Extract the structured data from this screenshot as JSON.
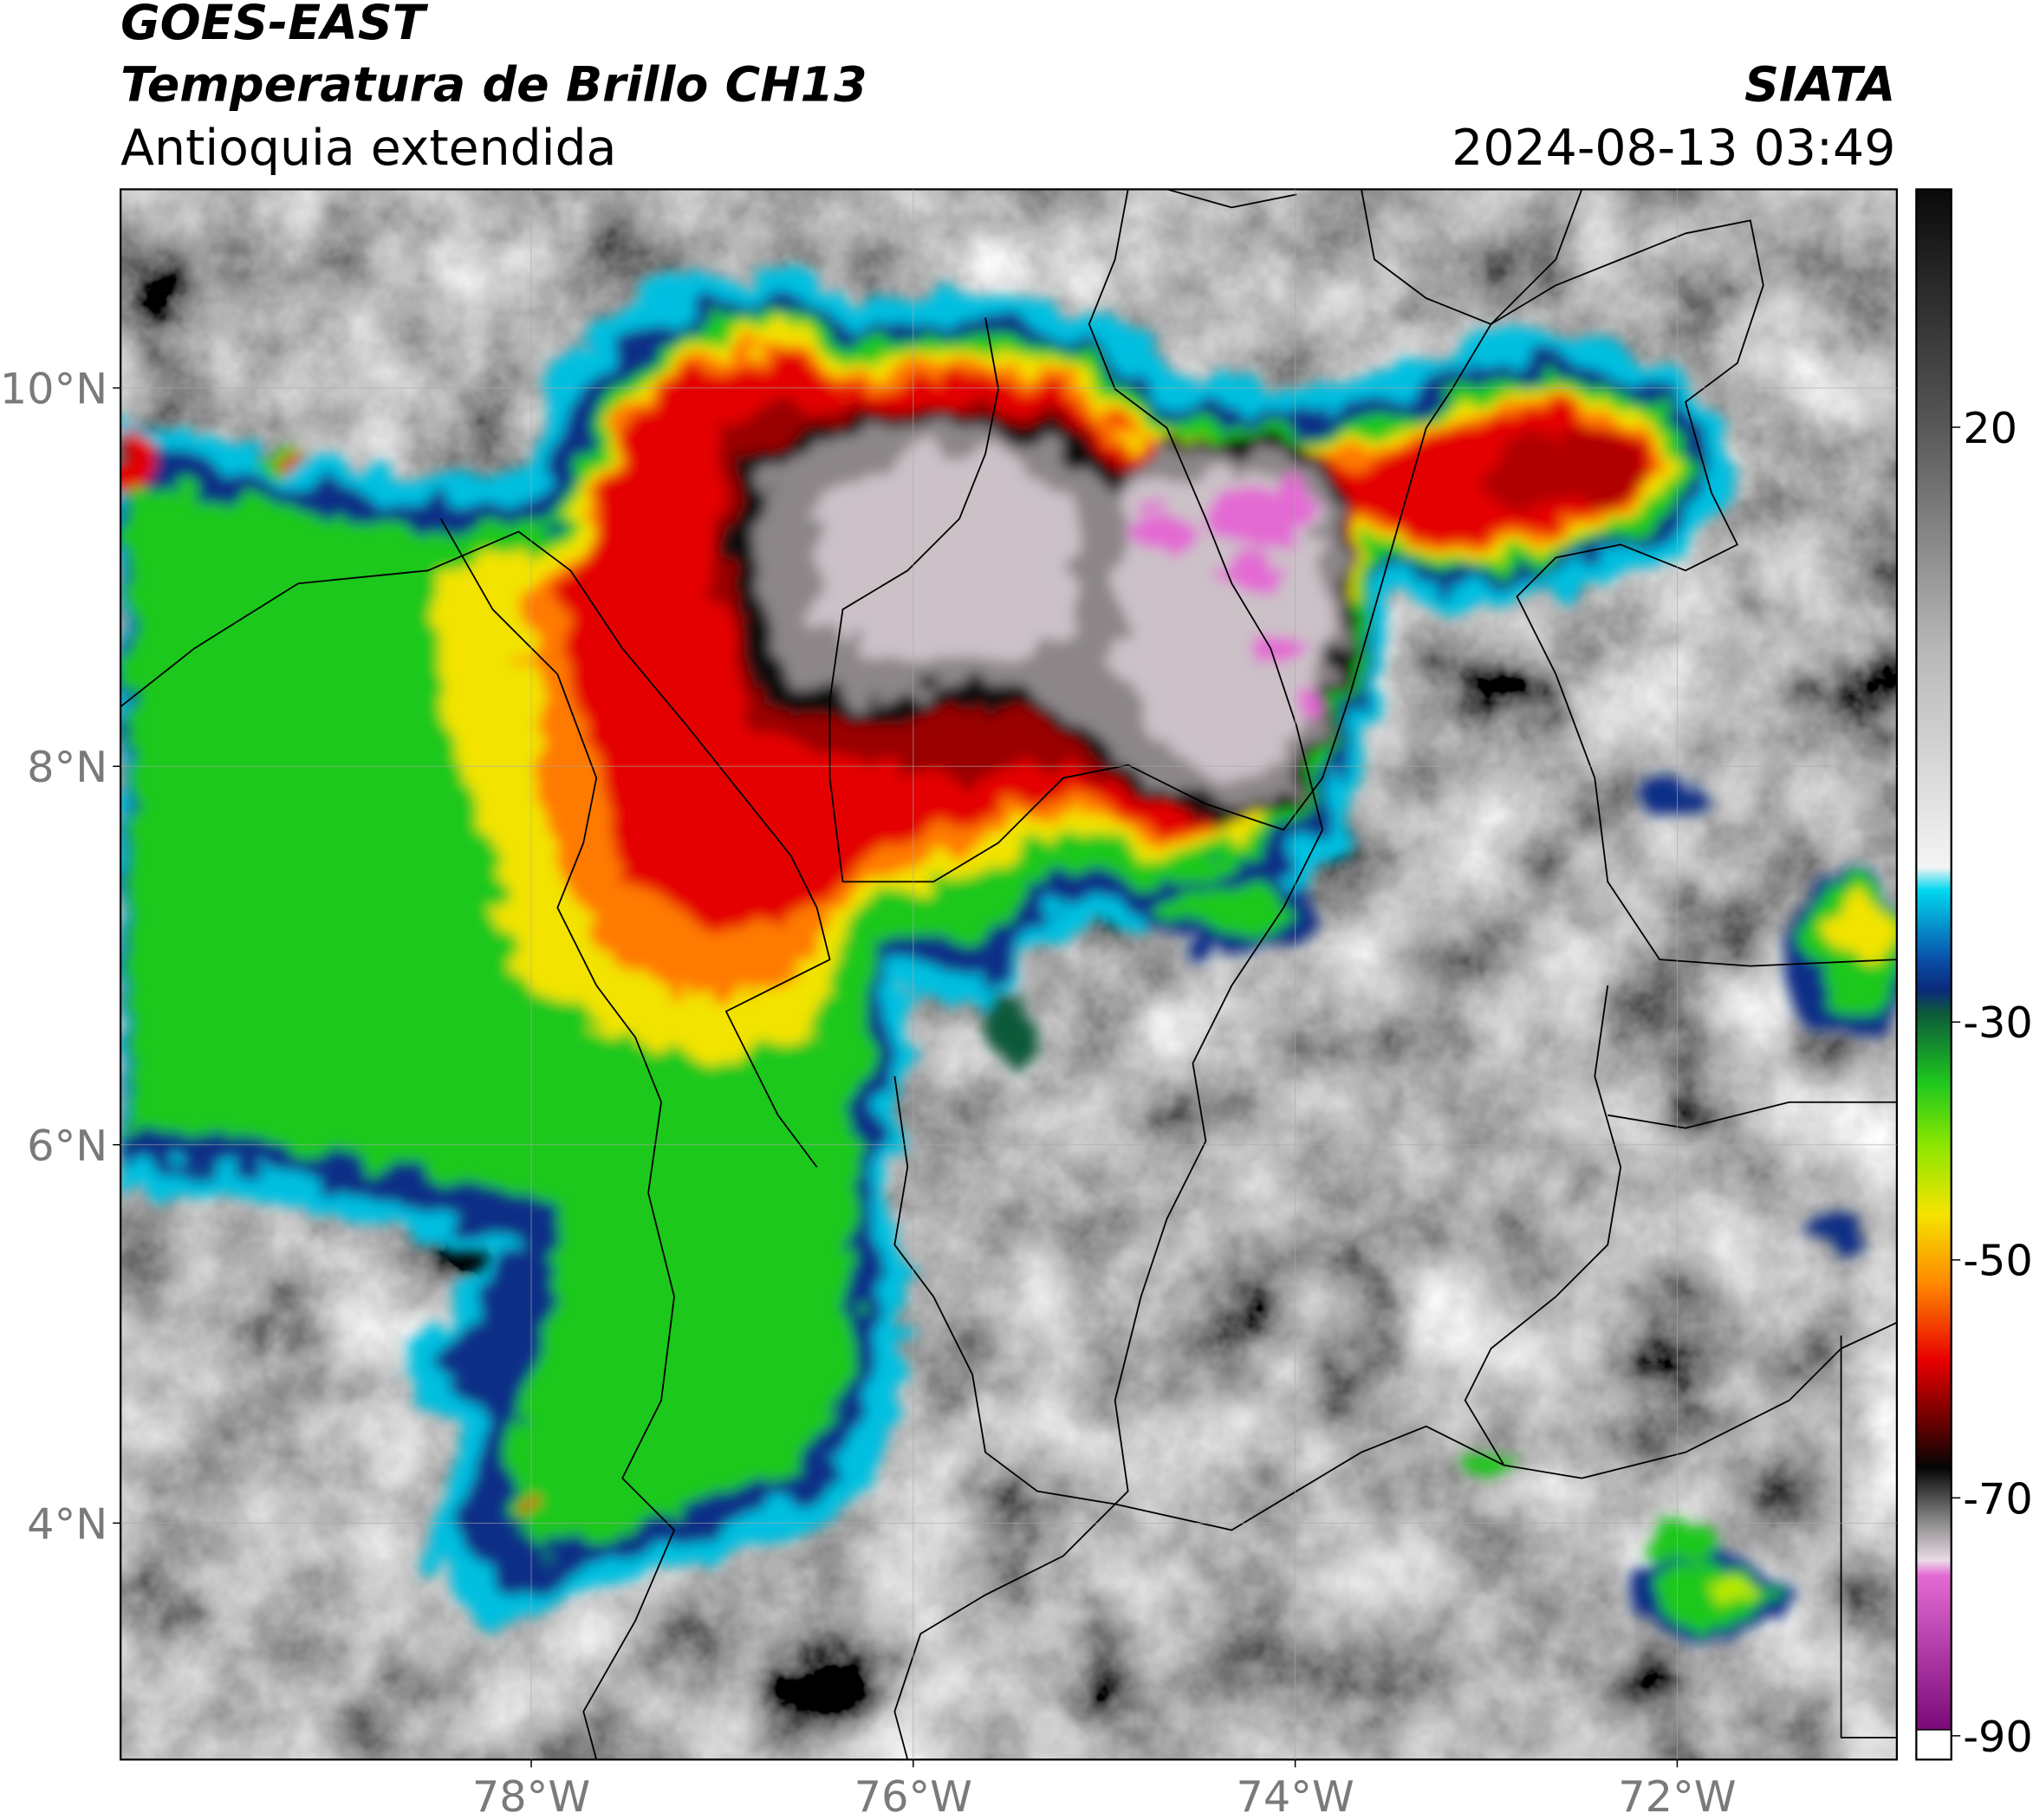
{
  "header": {
    "title": "GOES-EAST",
    "subtitle": "Temperatura de Brillo CH13",
    "region": "Antioquia extendida",
    "source": "SIATA",
    "timestamp": "2024-08-13 03:49"
  },
  "map": {
    "lon_range": [
      -80.15,
      -70.85
    ],
    "lat_range": [
      2.75,
      11.05
    ],
    "lon_ticks": [
      {
        "value": -78,
        "label": "78°W"
      },
      {
        "value": -76,
        "label": "76°W"
      },
      {
        "value": -74,
        "label": "74°W"
      },
      {
        "value": -72,
        "label": "72°W"
      }
    ],
    "lat_ticks": [
      {
        "value": 10,
        "label": "10°N"
      },
      {
        "value": 8,
        "label": "8°N"
      },
      {
        "value": 6,
        "label": "6°N"
      },
      {
        "value": 4,
        "label": "4°N"
      }
    ]
  },
  "colorbar": {
    "range": [
      -92,
      40
    ],
    "ticks": [
      20,
      -30,
      -50,
      -70,
      -90
    ]
  }
}
